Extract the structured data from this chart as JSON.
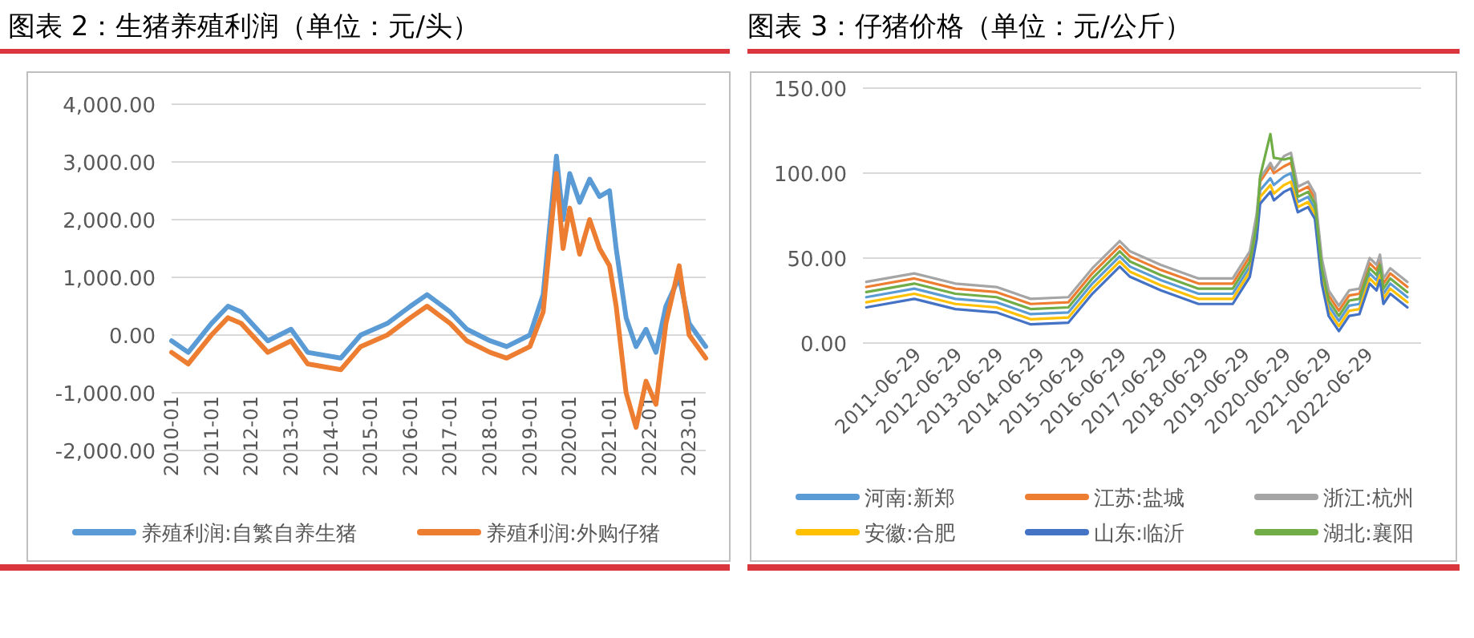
{
  "chart_data": [
    {
      "type": "line",
      "title": "图表 2：生猪养殖利润（单位：元/头）",
      "grid": "y",
      "legend": "bottom",
      "x": [
        "2010-01",
        "2010-06",
        "2011-01",
        "2011-06",
        "2011-10",
        "2012-06",
        "2013-01",
        "2013-06",
        "2014-04",
        "2014-10",
        "2015-06",
        "2016-01",
        "2016-06",
        "2017-01",
        "2017-06",
        "2018-01",
        "2018-06",
        "2019-01",
        "2019-05",
        "2019-09",
        "2019-11",
        "2020-01",
        "2020-04",
        "2020-07",
        "2020-10",
        "2021-01",
        "2021-03",
        "2021-06",
        "2021-09",
        "2021-12",
        "2022-03",
        "2022-06",
        "2022-10",
        "2023-01",
        "2023-06"
      ],
      "xlim": [
        "2010-01",
        "2023-06"
      ],
      "xticks": [
        "2010-01",
        "2011-01",
        "2012-01",
        "2013-01",
        "2014-01",
        "2015-01",
        "2016-01",
        "2017-01",
        "2018-01",
        "2019-01",
        "2020-01",
        "2021-01",
        "2022-01",
        "2023-01"
      ],
      "ylim": [
        -2000,
        4000
      ],
      "yticks": [
        {
          "value": -2000,
          "label": "-2,000.00"
        },
        {
          "value": -1000,
          "label": "-1,000.00"
        },
        {
          "value": 0,
          "label": "0.00"
        },
        {
          "value": 1000,
          "label": "1,000.00"
        },
        {
          "value": 2000,
          "label": "2,000.00"
        },
        {
          "value": 3000,
          "label": "3,000.00"
        },
        {
          "value": 4000,
          "label": "4,000.00"
        }
      ],
      "series": [
        {
          "name": "养殖利润:自繁自养生猪",
          "color": "#5b9bd5",
          "values": [
            -100,
            -300,
            200,
            500,
            400,
            -100,
            100,
            -300,
            -400,
            0,
            200,
            500,
            700,
            400,
            100,
            -100,
            -200,
            0,
            700,
            3100,
            2000,
            2800,
            2300,
            2700,
            2400,
            2500,
            1500,
            300,
            -200,
            100,
            -300,
            500,
            1000,
            200,
            -200
          ]
        },
        {
          "name": "养殖利润:外购仔猪",
          "color": "#ed7d31",
          "values": [
            -300,
            -500,
            0,
            300,
            200,
            -300,
            -100,
            -500,
            -600,
            -200,
            0,
            300,
            500,
            200,
            -100,
            -300,
            -400,
            -200,
            400,
            2800,
            1500,
            2200,
            1400,
            2000,
            1500,
            1200,
            500,
            -1000,
            -1600,
            -800,
            -1200,
            200,
            1200,
            0,
            -400
          ]
        }
      ]
    },
    {
      "type": "line",
      "title": "图表 3：仔猪价格（单位：元/公斤）",
      "grid": "y",
      "legend": "bottom",
      "x": [
        "2010-04",
        "2011-06",
        "2012-06",
        "2013-06",
        "2014-04",
        "2015-03",
        "2015-10",
        "2016-06",
        "2016-09",
        "2017-06",
        "2018-05",
        "2019-03",
        "2019-08",
        "2019-10",
        "2019-11",
        "2020-02",
        "2020-03",
        "2020-06",
        "2020-08",
        "2020-10",
        "2021-01",
        "2021-03",
        "2021-05",
        "2021-07",
        "2021-10",
        "2022-01",
        "2022-04",
        "2022-07",
        "2022-09",
        "2022-10",
        "2022-11",
        "2023-01",
        "2023-06"
      ],
      "xlim": [
        "2010-03",
        "2023-10"
      ],
      "xticks": [
        "2011-06-29",
        "2012-06-29",
        "2013-06-29",
        "2014-06-29",
        "2015-06-29",
        "2016-06-29",
        "2017-06-29",
        "2018-06-29",
        "2019-06-29",
        "2020-06-29",
        "2021-06-29",
        "2022-06-29"
      ],
      "ylim": [
        0,
        150
      ],
      "yticks": [
        {
          "value": 0,
          "label": "0.00"
        },
        {
          "value": 50,
          "label": "50.00"
        },
        {
          "value": 100,
          "label": "100.00"
        },
        {
          "value": 150,
          "label": "150.00"
        }
      ],
      "series": [
        {
          "name": "河南:新郑",
          "color": "#5b9bd5",
          "values": [
            27,
            32,
            26,
            24,
            17,
            18,
            35,
            51,
            45,
            37,
            29,
            29,
            45,
            67,
            90,
            97,
            93,
            98,
            100,
            83,
            86,
            79,
            41,
            22,
            13,
            22,
            23,
            41,
            37,
            43,
            29,
            35,
            27
          ]
        },
        {
          "name": "江苏:盐城",
          "color": "#ed7d31",
          "values": [
            33,
            38,
            32,
            30,
            23,
            24,
            41,
            57,
            51,
            43,
            35,
            35,
            51,
            73,
            95,
            104,
            100,
            104,
            106,
            89,
            92,
            85,
            47,
            28,
            19,
            28,
            29,
            47,
            43,
            49,
            35,
            41,
            33
          ]
        },
        {
          "name": "浙江:杭州",
          "color": "#a5a5a5",
          "values": [
            36,
            41,
            35,
            33,
            26,
            27,
            44,
            60,
            54,
            46,
            38,
            38,
            54,
            76,
            97,
            106,
            102,
            110,
            112,
            92,
            95,
            88,
            50,
            31,
            22,
            31,
            32,
            50,
            46,
            52,
            38,
            44,
            36
          ]
        },
        {
          "name": "安徽:合肥",
          "color": "#ffc000",
          "values": [
            24,
            29,
            23,
            21,
            14,
            15,
            32,
            48,
            42,
            34,
            26,
            26,
            42,
            64,
            86,
            93,
            88,
            93,
            95,
            80,
            83,
            76,
            38,
            19,
            10,
            19,
            20,
            38,
            34,
            40,
            26,
            32,
            24
          ]
        },
        {
          "name": "山东:临沂",
          "color": "#4472c4",
          "values": [
            21,
            26,
            20,
            18,
            11,
            12,
            29,
            45,
            39,
            31,
            23,
            23,
            39,
            61,
            82,
            89,
            84,
            89,
            91,
            77,
            80,
            73,
            35,
            16,
            7,
            16,
            17,
            35,
            31,
            37,
            23,
            29,
            21
          ]
        },
        {
          "name": "湖北:襄阳",
          "color": "#70ad47",
          "values": [
            30,
            35,
            29,
            27,
            20,
            21,
            38,
            54,
            48,
            40,
            32,
            32,
            48,
            70,
            98,
            123,
            109,
            108,
            109,
            86,
            89,
            82,
            44,
            25,
            16,
            25,
            26,
            44,
            40,
            46,
            32,
            38,
            30
          ]
        }
      ]
    }
  ]
}
